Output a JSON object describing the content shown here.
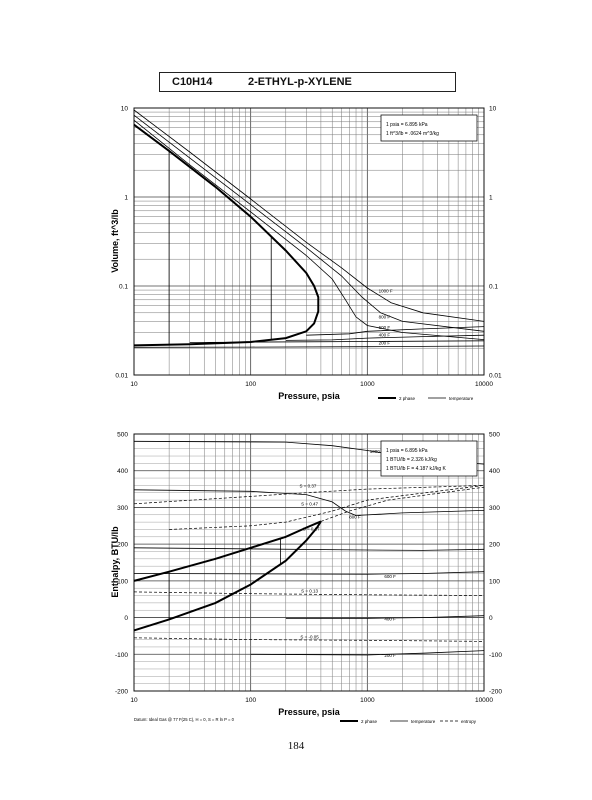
{
  "title": {
    "formula": "C10H14",
    "name": "2-ETHYL-p-XYLENE"
  },
  "page_number": "184",
  "chart_data": [
    {
      "type": "line",
      "xscale": "log",
      "yscale": "log",
      "xlim": [
        10,
        10000
      ],
      "ylim": [
        0.01,
        10
      ],
      "xlabel": "Pressure, psia",
      "ylabel": "Volume, ft^3/lb",
      "x_ticks": [
        "10",
        "100",
        "1000",
        "10000"
      ],
      "y_ticks": [
        "0.01",
        "0.1",
        "1",
        "10"
      ],
      "y_ticks_right": [
        "0.01",
        "0.1",
        "1",
        "10"
      ],
      "conversion_box": [
        "1 psia = 6.895 kPa",
        "1 ft^3/lb = .0624 m^3/kg"
      ],
      "legend": [
        {
          "label": "2 phase",
          "style": "thick"
        },
        {
          "label": "temperature",
          "style": "thin"
        }
      ],
      "series": [
        {
          "style": "thick",
          "points": [
            [
              10,
              0.0215
            ],
            [
              30,
              0.0222
            ],
            [
              100,
              0.0235
            ],
            [
              200,
              0.026
            ],
            [
              300,
              0.031
            ],
            [
              350,
              0.038
            ],
            [
              380,
              0.052
            ],
            [
              380,
              0.075
            ],
            [
              350,
              0.1
            ],
            [
              300,
              0.14
            ],
            [
              200,
              0.25
            ],
            [
              100,
              0.6
            ],
            [
              50,
              1.3
            ],
            [
              20,
              3.3
            ],
            [
              10,
              6.5
            ]
          ]
        },
        {
          "style": "thin",
          "points": [
            [
              10,
              7.3
            ],
            [
              30,
              2.3
            ],
            [
              100,
              0.68
            ],
            [
              300,
              0.22
            ],
            [
              500,
              0.12
            ],
            [
              650,
              0.07
            ],
            [
              800,
              0.045
            ],
            [
              1000,
              0.036
            ],
            [
              2000,
              0.03
            ],
            [
              10000,
              0.025
            ]
          ]
        },
        {
          "style": "thin",
          "points": [
            [
              10,
              8.3
            ],
            [
              30,
              2.75
            ],
            [
              100,
              0.82
            ],
            [
              300,
              0.27
            ],
            [
              600,
              0.13
            ],
            [
              900,
              0.075
            ],
            [
              1300,
              0.05
            ],
            [
              2000,
              0.04
            ],
            [
              10000,
              0.031
            ]
          ]
        },
        {
          "style": "thin",
          "points": [
            [
              10,
              9.5
            ],
            [
              30,
              3.2
            ],
            [
              100,
              0.95
            ],
            [
              300,
              0.31
            ],
            [
              600,
              0.16
            ],
            [
              1000,
              0.095
            ],
            [
              1600,
              0.065
            ],
            [
              3000,
              0.05
            ],
            [
              10000,
              0.04
            ]
          ]
        },
        {
          "style": "thin",
          "points": [
            [
              30,
              0.0232
            ],
            [
              100,
              0.0234
            ],
            [
              300,
              0.0236
            ],
            [
              1000,
              0.0238
            ],
            [
              10000,
              0.0242
            ]
          ]
        },
        {
          "style": "thin",
          "points": [
            [
              10,
              0.0205
            ],
            [
              100,
              0.0206
            ],
            [
              1000,
              0.0208
            ],
            [
              10000,
              0.0212
            ]
          ]
        },
        {
          "style": "thin",
          "points": [
            [
              200,
              0.0245
            ],
            [
              500,
              0.0248
            ],
            [
              1000,
              0.026
            ],
            [
              3000,
              0.027
            ],
            [
              10000,
              0.028
            ]
          ]
        },
        {
          "style": "thin",
          "points": [
            [
              300,
              0.028
            ],
            [
              700,
              0.029
            ],
            [
              1000,
              0.031
            ],
            [
              3000,
              0.033
            ],
            [
              10000,
              0.035
            ]
          ]
        }
      ],
      "isotherm_labels": [
        {
          "text": "1000 F",
          "x": 1250,
          "y": 0.085
        },
        {
          "text": "800 F",
          "x": 1250,
          "y": 0.043
        },
        {
          "text": "600 F",
          "x": 1250,
          "y": 0.033
        },
        {
          "text": "400 F",
          "x": 1250,
          "y": 0.027
        },
        {
          "text": "200 F",
          "x": 1250,
          "y": 0.022
        }
      ],
      "vertical_segments": [
        {
          "x": 20,
          "y1": 0.022,
          "y2": 3.3
        },
        {
          "x": 150,
          "y1": 0.025,
          "y2": 0.35
        }
      ]
    },
    {
      "type": "line",
      "xscale": "log",
      "yscale": "linear",
      "xlim": [
        10,
        10000
      ],
      "ylim": [
        -200,
        500
      ],
      "xlabel": "Pressure, psia",
      "ylabel": "Enthalpy, BTU/lb",
      "x_ticks": [
        "10",
        "100",
        "1000",
        "10000"
      ],
      "y_ticks": [
        "-200",
        "-100",
        "0",
        "100",
        "200",
        "300",
        "400",
        "500"
      ],
      "y_ticks_right": [
        "-200",
        "-100",
        "0",
        "100",
        "200",
        "300",
        "400",
        "500"
      ],
      "conversion_box": [
        "1 psia = 6.895 kPa",
        "1 BTU/lb = 2.326 kJ/kg",
        "1 BTU/lb F = 4.187 kJ/kg K"
      ],
      "legend": [
        {
          "label": "2 phase",
          "style": "thick"
        },
        {
          "label": "temperature",
          "style": "thin"
        },
        {
          "label": "entropy",
          "style": "dashed"
        }
      ],
      "footnote": "Datum: Ideal Gas @ 77 F(25 C), H = 0, S = R ln P = 0",
      "series": [
        {
          "style": "thick",
          "points": [
            [
              10,
              100
            ],
            [
              20,
              125
            ],
            [
              50,
              160
            ],
            [
              100,
              190
            ],
            [
              200,
              220
            ],
            [
              300,
              245
            ],
            [
              400,
              262
            ]
          ]
        },
        {
          "style": "thick",
          "points": [
            [
              10,
              -35
            ],
            [
              20,
              -5
            ],
            [
              50,
              40
            ],
            [
              100,
              90
            ],
            [
              200,
              155
            ],
            [
              300,
              210
            ],
            [
              370,
              245
            ],
            [
              400,
              262
            ]
          ]
        },
        {
          "style": "thin",
          "points": [
            [
              10,
              480
            ],
            [
              200,
              478
            ],
            [
              500,
              468
            ],
            [
              1000,
              455
            ],
            [
              2000,
              440
            ],
            [
              5000,
              425
            ],
            [
              10000,
              418
            ]
          ]
        },
        {
          "style": "thin",
          "points": [
            [
              10,
              348
            ],
            [
              100,
              344
            ],
            [
              300,
              335
            ],
            [
              500,
              315
            ],
            [
              650,
              290
            ],
            [
              800,
              278
            ],
            [
              2000,
              285
            ],
            [
              10000,
              292
            ]
          ]
        },
        {
          "style": "thin",
          "points": [
            [
              10,
              190
            ],
            [
              1000,
              184
            ],
            [
              3000,
              183
            ],
            [
              10000,
              186
            ]
          ]
        },
        {
          "style": "thin",
          "points": [
            [
              10,
              120
            ],
            [
              1000,
              118
            ],
            [
              3000,
              120
            ],
            [
              10000,
              125
            ]
          ]
        },
        {
          "style": "thin",
          "points": [
            [
              200,
              -2
            ],
            [
              1000,
              -2
            ],
            [
              3000,
              0
            ],
            [
              10000,
              5
            ]
          ]
        },
        {
          "style": "thin",
          "points": [
            [
              100,
              -100
            ],
            [
              1000,
              -102
            ],
            [
              3000,
              -97
            ],
            [
              10000,
              -90
            ]
          ]
        },
        {
          "style": "dashed",
          "points": [
            [
              10,
              310
            ],
            [
              100,
              330
            ],
            [
              300,
              340
            ],
            [
              1000,
              350
            ],
            [
              10000,
              360
            ]
          ]
        },
        {
          "style": "dashed",
          "points": [
            [
              20,
              240
            ],
            [
              100,
              250
            ],
            [
              200,
              260
            ],
            [
              500,
              290
            ],
            [
              1000,
              320
            ],
            [
              10000,
              360
            ]
          ]
        },
        {
          "style": "dashed",
          "points": [
            [
              400,
              262
            ],
            [
              700,
              290
            ],
            [
              1500,
              320
            ],
            [
              10000,
              355
            ]
          ]
        },
        {
          "style": "dashed",
          "points": [
            [
              10,
              70
            ],
            [
              100,
              65
            ],
            [
              1000,
              62
            ],
            [
              10000,
              60
            ]
          ]
        },
        {
          "style": "dashed",
          "points": [
            [
              10,
              -55
            ],
            [
              100,
              -60
            ],
            [
              1000,
              -62
            ],
            [
              10000,
              -65
            ]
          ]
        }
      ],
      "isotherm_labels": [
        {
          "text": "1000",
          "x": 1050,
          "y": 448
        },
        {
          "text": "800 F",
          "x": 700,
          "y": 270
        },
        {
          "text": "600 F",
          "x": 1400,
          "y": 108
        },
        {
          "text": "400 F",
          "x": 1400,
          "y": -8
        },
        {
          "text": "200 F",
          "x": 1400,
          "y": -108
        }
      ],
      "entropy_labels": [
        {
          "text": "S = 0.37",
          "x": 310,
          "y": 354
        },
        {
          "text": "S = 0.47",
          "x": 320,
          "y": 305
        },
        {
          "text": "S = 0.27",
          "x": 330,
          "y": 237
        },
        {
          "text": "S = 0.13",
          "x": 320,
          "y": 68
        },
        {
          "text": "S = -0.05",
          "x": 320,
          "y": -57
        }
      ],
      "vertical_segments": [
        {
          "x": 20,
          "y1": -5,
          "y2": 125
        },
        {
          "x": 180,
          "y1": 145,
          "y2": 215
        }
      ]
    }
  ]
}
